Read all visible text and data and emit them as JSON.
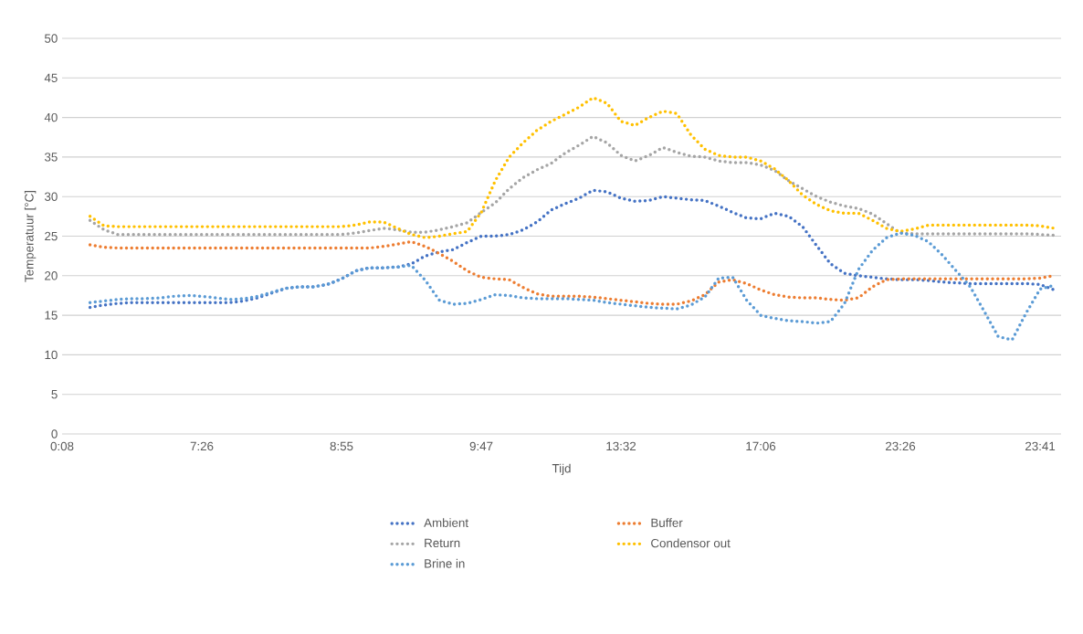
{
  "chart_data": {
    "type": "line",
    "xlabel": "Tijd",
    "ylabel": "Temperatuur [°C]",
    "categories": [
      "0:08",
      null,
      null,
      null,
      null,
      null,
      null,
      null,
      null,
      null,
      "7:26",
      null,
      null,
      null,
      null,
      null,
      null,
      null,
      null,
      null,
      "8:55",
      null,
      null,
      null,
      null,
      null,
      null,
      null,
      null,
      null,
      "9:47",
      null,
      null,
      null,
      null,
      null,
      null,
      null,
      null,
      null,
      "13:32",
      null,
      null,
      null,
      null,
      null,
      null,
      null,
      null,
      null,
      "17:06",
      null,
      null,
      null,
      null,
      null,
      null,
      null,
      null,
      null,
      "23:26",
      null,
      null,
      null,
      null,
      null,
      null,
      null,
      null,
      null,
      "23:41",
      null
    ],
    "ylim": [
      0,
      50
    ],
    "yticks": [
      0,
      5,
      10,
      15,
      20,
      25,
      30,
      35,
      40,
      45,
      50
    ],
    "grid": "y",
    "legend": "bottom",
    "line_style": "dotted",
    "marker": "none",
    "series": [
      {
        "name": "Ambient",
        "color": "#4472c4",
        "values": [
          null,
          null,
          16,
          16.3,
          16.5,
          16.6,
          16.6,
          16.6,
          16.6,
          16.6,
          16.6,
          16.6,
          16.6,
          16.8,
          17.2,
          17.8,
          18.4,
          18.6,
          18.6,
          18.9,
          19.6,
          20.6,
          21,
          21,
          21.1,
          21.5,
          22.5,
          23,
          23.3,
          24.2,
          25,
          25,
          25.2,
          25.8,
          26.8,
          28.3,
          29.1,
          29.8,
          30.8,
          30.6,
          29.8,
          29.4,
          29.5,
          30,
          29.8,
          29.6,
          29.5,
          28.8,
          28,
          27.3,
          27.2,
          27.9,
          27.5,
          26.2,
          23.8,
          21.5,
          20.3,
          20,
          19.8,
          19.6,
          19.5,
          19.5,
          19.4,
          19.2,
          19.1,
          19,
          19,
          19,
          19,
          19,
          18.9,
          18.2
        ]
      },
      {
        "name": "Buffer",
        "color": "#ed7d31",
        "values": [
          null,
          null,
          23.9,
          23.6,
          23.5,
          23.5,
          23.5,
          23.5,
          23.5,
          23.5,
          23.5,
          23.5,
          23.5,
          23.5,
          23.5,
          23.5,
          23.5,
          23.5,
          23.5,
          23.5,
          23.5,
          23.5,
          23.5,
          23.7,
          24,
          24.3,
          23.7,
          22.8,
          21.8,
          20.6,
          19.8,
          19.6,
          19.5,
          18.5,
          17.7,
          17.4,
          17.4,
          17.4,
          17.3,
          17.1,
          16.9,
          16.7,
          16.5,
          16.4,
          16.4,
          16.8,
          17.6,
          19.2,
          19.5,
          19,
          18.2,
          17.6,
          17.3,
          17.2,
          17.2,
          17,
          16.9,
          17.2,
          18.6,
          19.5,
          19.6,
          19.6,
          19.6,
          19.6,
          19.6,
          19.6,
          19.6,
          19.6,
          19.6,
          19.6,
          19.7,
          20
        ]
      },
      {
        "name": "Return",
        "color": "#a5a5a5",
        "values": [
          null,
          null,
          27,
          25.8,
          25.2,
          25.2,
          25.2,
          25.2,
          25.2,
          25.2,
          25.2,
          25.2,
          25.2,
          25.2,
          25.2,
          25.2,
          25.2,
          25.2,
          25.2,
          25.2,
          25.2,
          25.4,
          25.7,
          26,
          25.8,
          25.5,
          25.5,
          25.8,
          26.2,
          26.7,
          28,
          29.2,
          31,
          32.4,
          33.4,
          34.2,
          35.5,
          36.5,
          37.6,
          36.8,
          35.2,
          34.5,
          35.2,
          36.2,
          35.6,
          35.1,
          35,
          34.5,
          34.3,
          34.3,
          34,
          33.3,
          32,
          31,
          30,
          29.3,
          28.8,
          28.5,
          27.8,
          26.6,
          25.4,
          25.3,
          25.3,
          25.3,
          25.3,
          25.3,
          25.3,
          25.3,
          25.3,
          25.3,
          25.2,
          25.1
        ]
      },
      {
        "name": "Condensor out",
        "color": "#ffc000",
        "values": [
          null,
          null,
          27.5,
          26.3,
          26.2,
          26.2,
          26.2,
          26.2,
          26.2,
          26.2,
          26.2,
          26.2,
          26.2,
          26.2,
          26.2,
          26.2,
          26.2,
          26.2,
          26.2,
          26.2,
          26.2,
          26.4,
          26.8,
          26.8,
          26,
          25.2,
          24.8,
          25,
          25.3,
          25.6,
          28,
          32,
          35,
          36.8,
          38.4,
          39.5,
          40.4,
          41.3,
          42.5,
          41.8,
          39.5,
          39,
          40,
          40.8,
          40.5,
          37.8,
          36,
          35.2,
          35,
          35,
          34.5,
          33.5,
          32,
          30.2,
          29,
          28.2,
          27.9,
          27.9,
          27,
          26,
          25.6,
          25.9,
          26.4,
          26.4,
          26.4,
          26.4,
          26.4,
          26.4,
          26.4,
          26.4,
          26.3,
          26
        ]
      },
      {
        "name": "Brine in",
        "color": "#5b9bd5",
        "values": [
          null,
          null,
          16.6,
          16.8,
          17,
          17.1,
          17.1,
          17.2,
          17.4,
          17.5,
          17.4,
          17.2,
          17,
          17.1,
          17.4,
          17.9,
          18.4,
          18.6,
          18.6,
          18.9,
          19.6,
          20.6,
          21,
          21,
          21.1,
          21.3,
          19.4,
          16.9,
          16.4,
          16.5,
          17,
          17.6,
          17.5,
          17.2,
          17.1,
          17.1,
          17.1,
          17,
          16.9,
          16.6,
          16.4,
          16.2,
          16,
          15.9,
          15.8,
          16.3,
          17.3,
          19.7,
          19.8,
          16.9,
          15,
          14.6,
          14.3,
          14.2,
          14,
          14.2,
          16.5,
          20.8,
          23.2,
          24.8,
          25.4,
          25.1,
          24.3,
          22.6,
          20.6,
          18.6,
          15.5,
          12.3,
          11.9,
          15.3,
          18.3,
          18.8
        ]
      }
    ]
  }
}
